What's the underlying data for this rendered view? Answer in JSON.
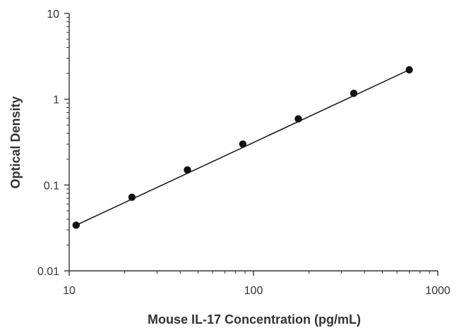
{
  "chart_data": {
    "type": "scatter",
    "title": "",
    "xlabel": "Mouse IL-17 Concentration (pg/mL)",
    "ylabel": "Optical Density",
    "xscale": "log",
    "yscale": "log",
    "xlim": [
      10,
      1000
    ],
    "ylim": [
      0.01,
      10
    ],
    "x_ticks": [
      10,
      100,
      1000
    ],
    "x_tick_labels": [
      "10",
      "100",
      "1000"
    ],
    "y_ticks": [
      0.01,
      0.1,
      1,
      10
    ],
    "y_tick_labels": [
      "0.01",
      "0.1",
      "1",
      "10"
    ],
    "grid": false,
    "legend": "none",
    "series": [
      {
        "x": [
          10.9,
          21.9,
          43.8,
          87.5,
          175,
          350,
          700
        ],
        "y": [
          0.034,
          0.072,
          0.15,
          0.3,
          0.59,
          1.17,
          2.2
        ]
      }
    ],
    "fit_line": {
      "x": [
        10.9,
        700
      ],
      "y": [
        0.034,
        2.2
      ]
    },
    "colors": {
      "points": "#111111",
      "axes": "#333333",
      "line": "#111111"
    }
  }
}
